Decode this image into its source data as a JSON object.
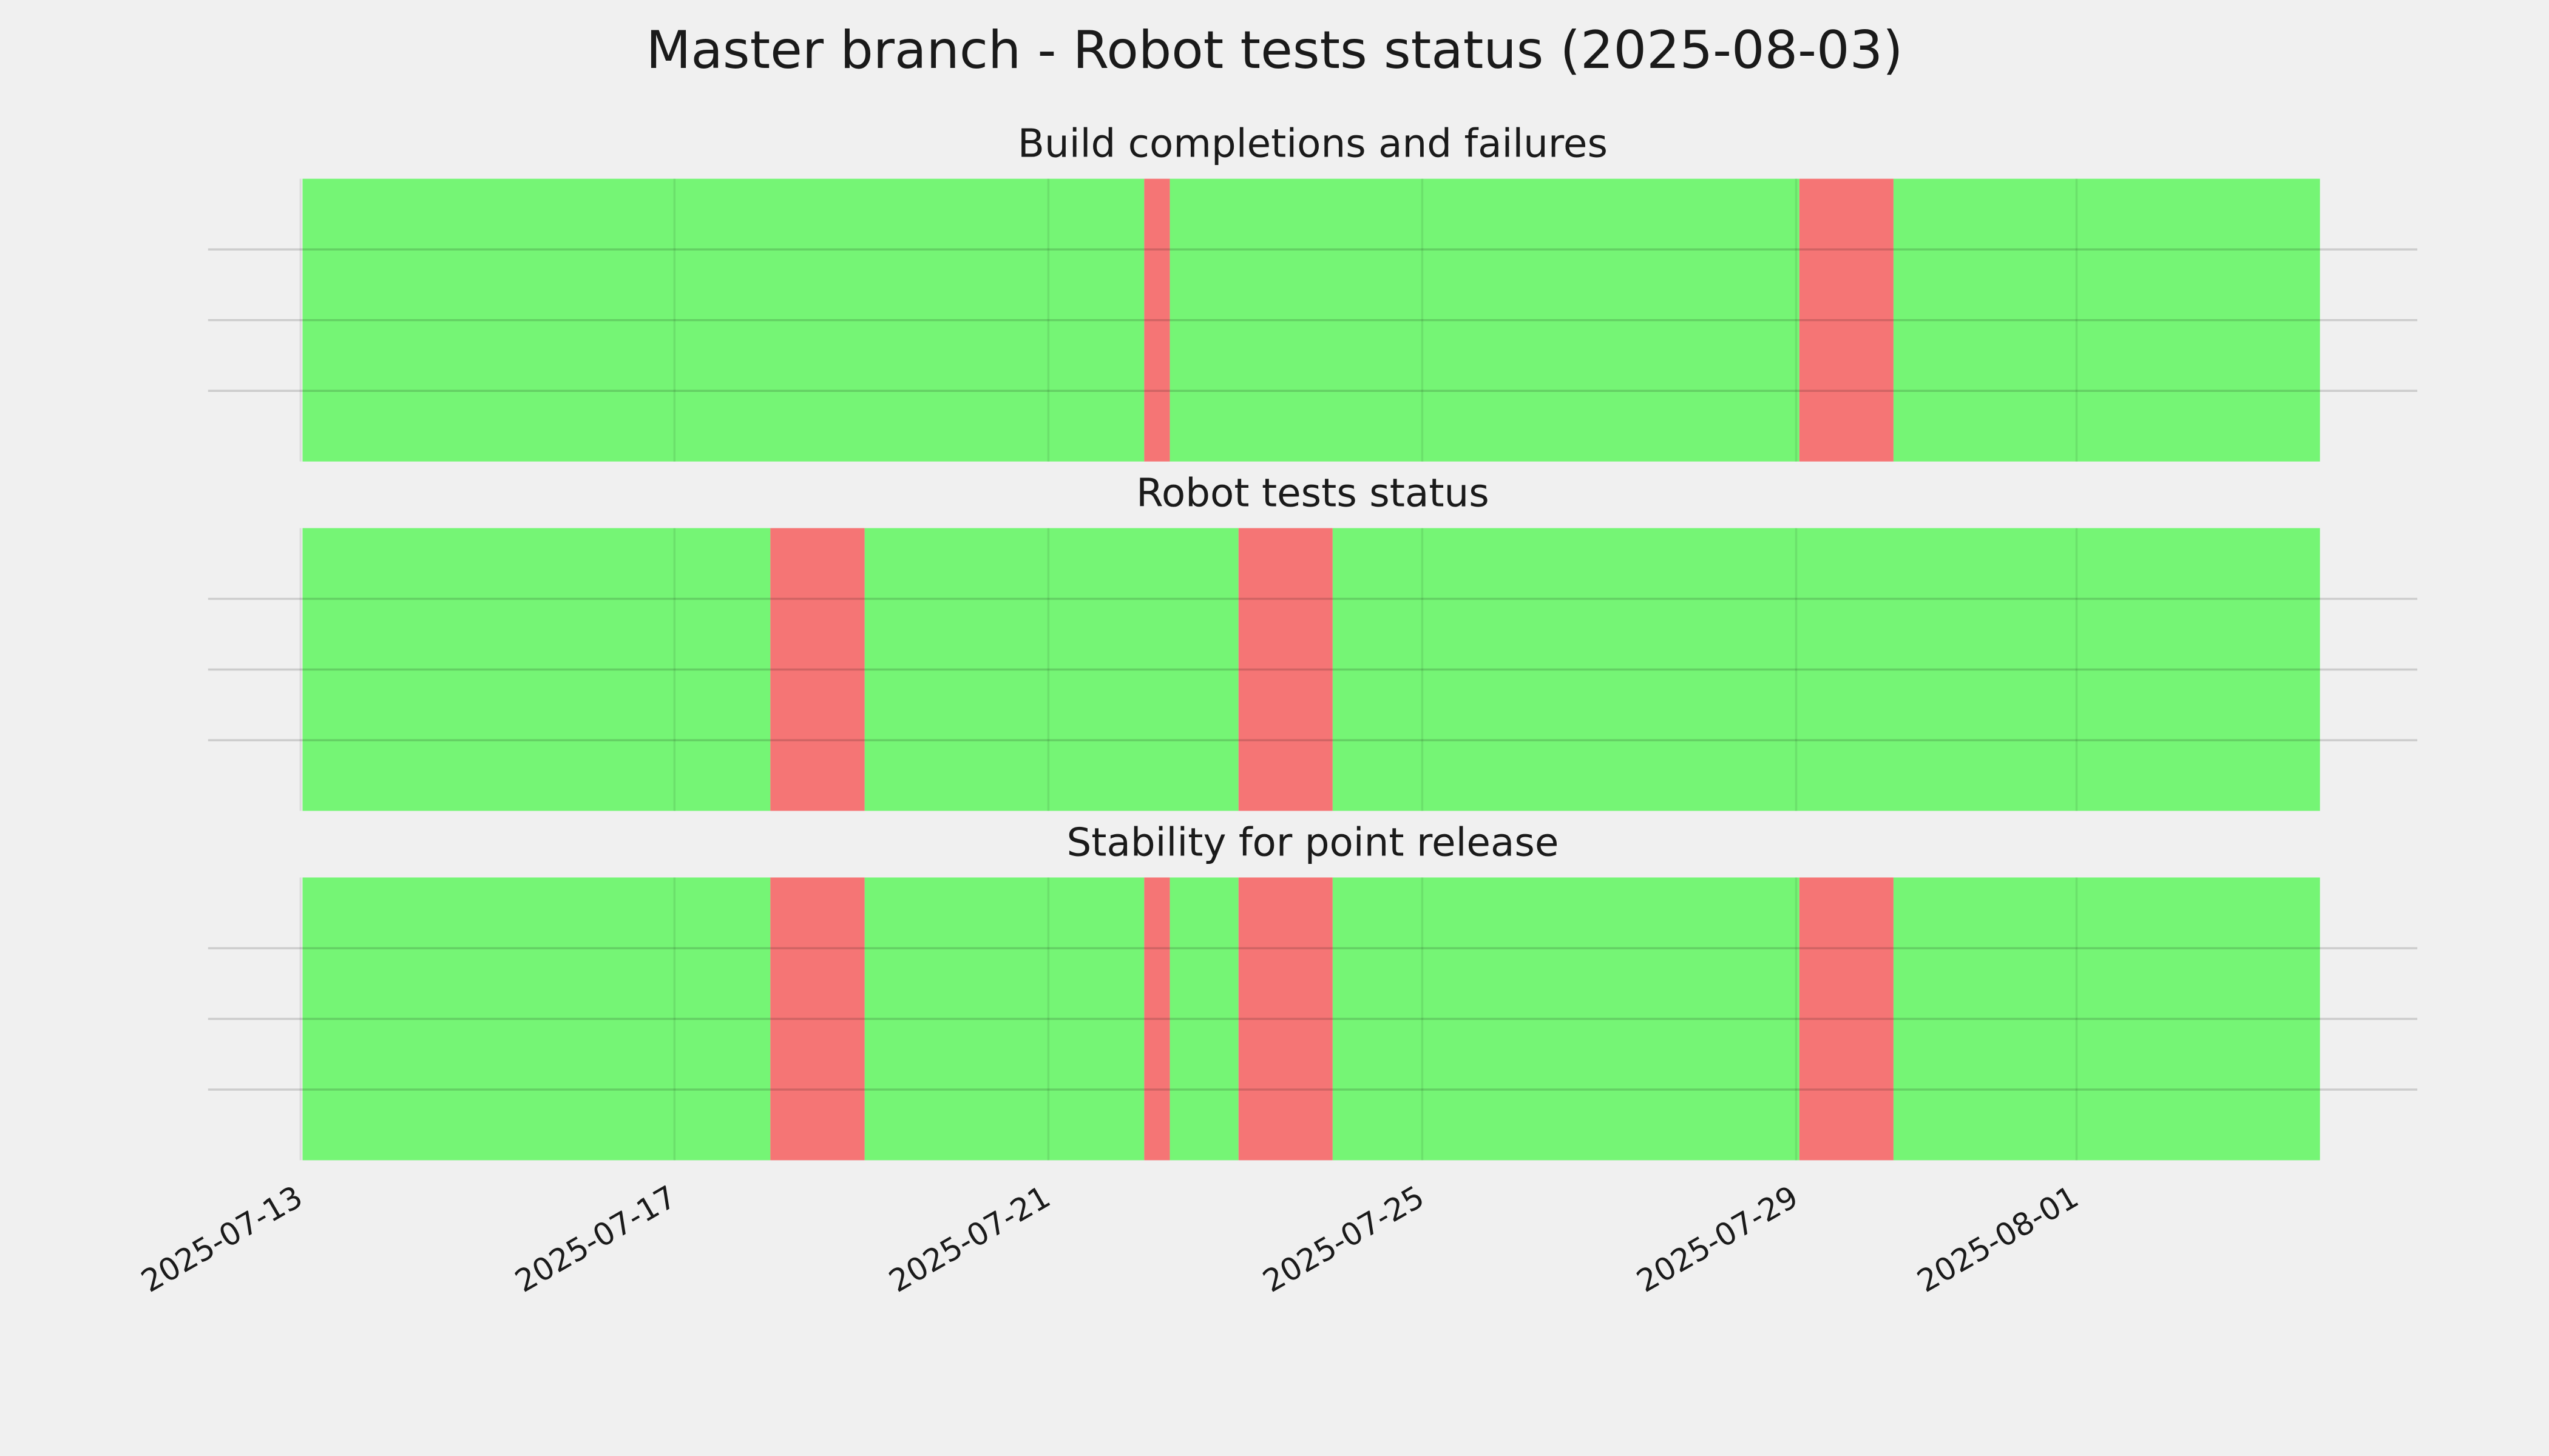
{
  "title": "Master branch - Robot tests status (2025-08-03)",
  "chart_data": [
    {
      "type": "timeline",
      "title": "Build completions and failures",
      "xlim": [
        "2025-07-12T00:15:00Z",
        "2025-08-04T15:30:00Z"
      ],
      "xticks": [
        "2025-07-13",
        "2025-07-17",
        "2025-07-21",
        "2025-07-25",
        "2025-07-29",
        "2025-08-01"
      ],
      "ylim": [
        0,
        1
      ],
      "yticks": [
        0.25,
        0.5,
        0.75
      ],
      "grid": true,
      "starts": [
        "2025-07-13T00:30:00Z",
        "2025-07-22T00:37:00Z",
        "2025-07-22T07:12:00Z",
        "2025-07-29T00:50:00Z",
        "2025-07-30T01:00:00Z"
      ],
      "ends": [
        "2025-07-22T00:37:00Z",
        "2025-07-22T07:12:00Z",
        "2025-07-29T00:50:00Z",
        "2025-07-30T01:00:00Z",
        "2025-08-03T14:30:00Z"
      ],
      "colors": [
        "#75f575",
        "#f57575",
        "#75f575",
        "#f57575",
        "#75f575"
      ]
    },
    {
      "type": "timeline",
      "title": "Robot tests status",
      "xlim": [
        "2025-07-12T00:15:00Z",
        "2025-08-04T15:30:00Z"
      ],
      "xticks": [
        "2025-07-13",
        "2025-07-17",
        "2025-07-21",
        "2025-07-25",
        "2025-07-29",
        "2025-08-01"
      ],
      "ylim": [
        0,
        1
      ],
      "yticks": [
        0.25,
        0.5,
        0.75
      ],
      "grid": true,
      "starts": [
        "2025-07-13T00:30:00Z",
        "2025-07-18T00:37:00Z",
        "2025-07-19T00:50:00Z",
        "2025-07-23T00:50:00Z",
        "2025-07-24T01:00:00Z"
      ],
      "ends": [
        "2025-07-18T00:37:00Z",
        "2025-07-19T00:50:00Z",
        "2025-07-23T00:50:00Z",
        "2025-07-24T01:00:00Z",
        "2025-08-03T14:30:00Z"
      ],
      "colors": [
        "#75f575",
        "#f57575",
        "#75f575",
        "#f57575",
        "#75f575"
      ]
    },
    {
      "type": "timeline",
      "title": "Stability for point release",
      "xlim": [
        "2025-07-12T00:15:00Z",
        "2025-08-04T15:30:00Z"
      ],
      "xticks": [
        "2025-07-13",
        "2025-07-17",
        "2025-07-21",
        "2025-07-25",
        "2025-07-29",
        "2025-08-01"
      ],
      "ylim": [
        0,
        1
      ],
      "yticks": [
        0.25,
        0.5,
        0.75
      ],
      "grid": true,
      "starts": [
        "2025-07-13T00:30:00Z",
        "2025-07-18T00:37:00Z",
        "2025-07-19T00:50:00Z",
        "2025-07-22T00:37:00Z",
        "2025-07-22T07:12:00Z",
        "2025-07-23T00:50:00Z",
        "2025-07-24T01:00:00Z",
        "2025-07-29T00:50:00Z",
        "2025-07-30T01:00:00Z"
      ],
      "ends": [
        "2025-07-18T00:37:00Z",
        "2025-07-19T00:50:00Z",
        "2025-07-22T00:37:00Z",
        "2025-07-22T07:12:00Z",
        "2025-07-23T00:50:00Z",
        "2025-07-24T01:00:00Z",
        "2025-07-29T00:50:00Z",
        "2025-07-30T01:00:00Z",
        "2025-08-03T14:30:00Z"
      ],
      "colors": [
        "#75f575",
        "#f57575",
        "#75f575",
        "#f57575",
        "#75f575",
        "#f57575",
        "#75f575",
        "#f57575",
        "#75f575"
      ]
    }
  ]
}
